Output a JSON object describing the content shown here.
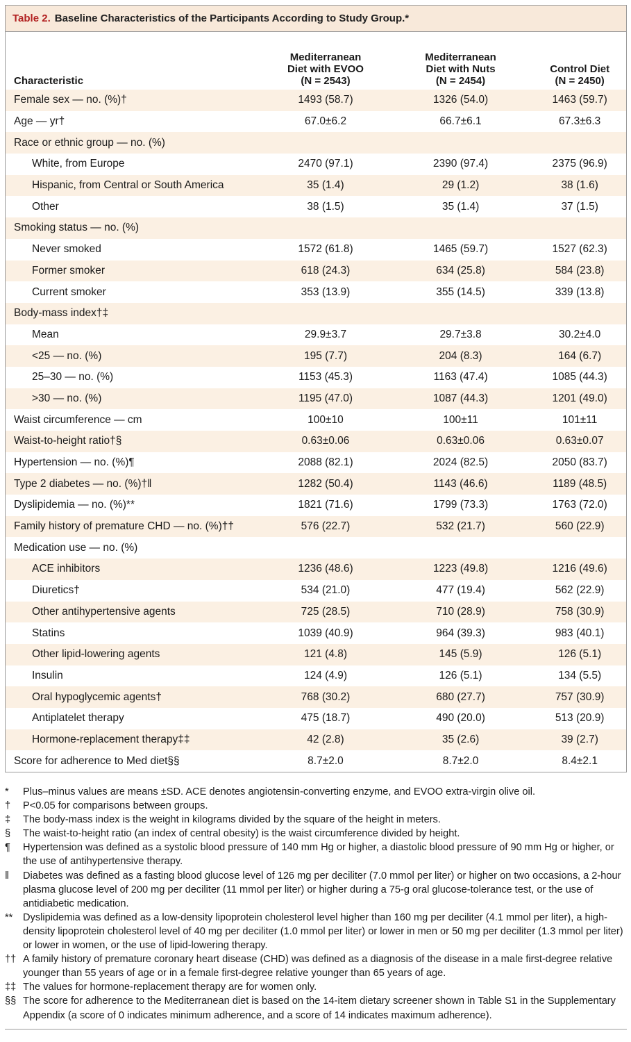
{
  "caption": {
    "number": "Table 2.",
    "title": "Baseline Characteristics of the Participants According to Study Group.*"
  },
  "columns": {
    "characteristic": "Characteristic",
    "evoo": [
      "Mediterranean",
      "Diet with EVOO",
      "(N = 2543)"
    ],
    "nuts": [
      "Mediterranean",
      "Diet with Nuts",
      "(N = 2454)"
    ],
    "control": [
      "Control Diet",
      "(N = 2450)"
    ]
  },
  "rows": [
    {
      "label": "Female sex — no. (%)†",
      "indent": false,
      "shade": true,
      "v": [
        "1493 (58.7)",
        "1326 (54.0)",
        "1463 (59.7)"
      ]
    },
    {
      "label": "Age — yr†",
      "indent": false,
      "shade": false,
      "v": [
        "67.0±6.2",
        "66.7±6.1",
        "67.3±6.3"
      ]
    },
    {
      "label": "Race or ethnic group — no. (%)",
      "indent": false,
      "shade": true,
      "v": [
        "",
        "",
        ""
      ]
    },
    {
      "label": "White, from Europe",
      "indent": true,
      "shade": false,
      "v": [
        "2470 (97.1)",
        "2390 (97.4)",
        "2375 (96.9)"
      ]
    },
    {
      "label": "Hispanic, from Central or South America",
      "indent": true,
      "shade": true,
      "v": [
        "35 (1.4)",
        "29 (1.2)",
        "38 (1.6)"
      ]
    },
    {
      "label": "Other",
      "indent": true,
      "shade": false,
      "v": [
        "38 (1.5)",
        "35 (1.4)",
        "37 (1.5)"
      ]
    },
    {
      "label": "Smoking status — no. (%)",
      "indent": false,
      "shade": true,
      "v": [
        "",
        "",
        ""
      ]
    },
    {
      "label": "Never smoked",
      "indent": true,
      "shade": false,
      "v": [
        "1572 (61.8)",
        "1465 (59.7)",
        "1527 (62.3)"
      ]
    },
    {
      "label": "Former smoker",
      "indent": true,
      "shade": true,
      "v": [
        "618 (24.3)",
        "634 (25.8)",
        "584 (23.8)"
      ]
    },
    {
      "label": "Current smoker",
      "indent": true,
      "shade": false,
      "v": [
        "353 (13.9)",
        "355 (14.5)",
        "339 (13.8)"
      ]
    },
    {
      "label": "Body-mass index†‡",
      "indent": false,
      "shade": true,
      "v": [
        "",
        "",
        ""
      ]
    },
    {
      "label": "Mean",
      "indent": true,
      "shade": false,
      "v": [
        "29.9±3.7",
        "29.7±3.8",
        "30.2±4.0"
      ]
    },
    {
      "label": "<25 — no. (%)",
      "indent": true,
      "shade": true,
      "v": [
        "195 (7.7)",
        "204 (8.3)",
        "164 (6.7)"
      ]
    },
    {
      "label": "25–30 — no. (%)",
      "indent": true,
      "shade": false,
      "v": [
        "1153 (45.3)",
        "1163 (47.4)",
        "1085 (44.3)"
      ]
    },
    {
      "label": ">30 — no. (%)",
      "indent": true,
      "shade": true,
      "v": [
        "1195 (47.0)",
        "1087 (44.3)",
        "1201 (49.0)"
      ]
    },
    {
      "label": "Waist circumference — cm",
      "indent": false,
      "shade": false,
      "v": [
        "100±10",
        "100±11",
        "101±11"
      ]
    },
    {
      "label": "Waist-to-height ratio†§",
      "indent": false,
      "shade": true,
      "v": [
        "0.63±0.06",
        "0.63±0.06",
        "0.63±0.07"
      ]
    },
    {
      "label": "Hypertension — no. (%)¶",
      "indent": false,
      "shade": false,
      "v": [
        "2088 (82.1)",
        "2024 (82.5)",
        "2050 (83.7)"
      ]
    },
    {
      "label": "Type 2 diabetes — no. (%)†‖",
      "indent": false,
      "shade": true,
      "v": [
        "1282 (50.4)",
        "1143 (46.6)",
        "1189 (48.5)"
      ]
    },
    {
      "label": "Dyslipidemia — no. (%)**",
      "indent": false,
      "shade": false,
      "v": [
        "1821 (71.6)",
        "1799 (73.3)",
        "1763 (72.0)"
      ]
    },
    {
      "label": "Family history of premature CHD — no. (%)††",
      "indent": false,
      "shade": true,
      "v": [
        "576 (22.7)",
        "532 (21.7)",
        "560 (22.9)"
      ]
    },
    {
      "label": "Medication use — no. (%)",
      "indent": false,
      "shade": false,
      "v": [
        "",
        "",
        ""
      ]
    },
    {
      "label": "ACE inhibitors",
      "indent": true,
      "shade": true,
      "v": [
        "1236 (48.6)",
        "1223 (49.8)",
        "1216 (49.6)"
      ]
    },
    {
      "label": "Diuretics†",
      "indent": true,
      "shade": false,
      "v": [
        "534 (21.0)",
        "477 (19.4)",
        "562 (22.9)"
      ]
    },
    {
      "label": "Other antihypertensive agents",
      "indent": true,
      "shade": true,
      "v": [
        "725 (28.5)",
        "710 (28.9)",
        "758 (30.9)"
      ]
    },
    {
      "label": "Statins",
      "indent": true,
      "shade": false,
      "v": [
        "1039 (40.9)",
        "964 (39.3)",
        "983 (40.1)"
      ]
    },
    {
      "label": "Other lipid-lowering agents",
      "indent": true,
      "shade": true,
      "v": [
        "121 (4.8)",
        "145 (5.9)",
        "126 (5.1)"
      ]
    },
    {
      "label": "Insulin",
      "indent": true,
      "shade": false,
      "v": [
        "124 (4.9)",
        "126 (5.1)",
        "134 (5.5)"
      ]
    },
    {
      "label": "Oral hypoglycemic agents†",
      "indent": true,
      "shade": true,
      "v": [
        "768 (30.2)",
        "680 (27.7)",
        "757 (30.9)"
      ]
    },
    {
      "label": "Antiplatelet therapy",
      "indent": true,
      "shade": false,
      "v": [
        "475 (18.7)",
        "490 (20.0)",
        "513 (20.9)"
      ]
    },
    {
      "label": "Hormone-replacement therapy‡‡",
      "indent": true,
      "shade": true,
      "v": [
        "42 (2.8)",
        "35 (2.6)",
        "39 (2.7)"
      ]
    },
    {
      "label": "Score for adherence to Med diet§§",
      "indent": false,
      "shade": false,
      "v": [
        "8.7±2.0",
        "8.7±2.0",
        "8.4±2.1"
      ]
    }
  ],
  "footnotes": [
    {
      "sym": "*",
      "text": "Plus–minus values are means ±SD. ACE denotes angiotensin-converting enzyme, and EVOO extra-virgin olive oil."
    },
    {
      "sym": "†",
      "text": "P<0.05 for comparisons between groups."
    },
    {
      "sym": "‡",
      "text": "The body-mass index is the weight in kilograms divided by the square of the height in meters."
    },
    {
      "sym": "§",
      "text": "The waist-to-height ratio (an index of central obesity) is the waist circumference divided by height."
    },
    {
      "sym": "¶",
      "text": "Hypertension was defined as a systolic blood pressure of 140 mm Hg or higher, a diastolic blood pressure of 90 mm Hg or higher, or the use of antihypertensive therapy."
    },
    {
      "sym": "‖",
      "text": "Diabetes was defined as a fasting blood glucose level of 126 mg per deciliter (7.0 mmol per liter) or higher on two occasions, a 2-hour plasma glucose level of 200 mg per deciliter (11 mmol per liter) or higher during a 75-g oral glucose-tolerance test, or the use of antidiabetic medication."
    },
    {
      "sym": "**",
      "text": "Dyslipidemia was defined as a low-density lipoprotein cholesterol level higher than 160 mg per deciliter (4.1 mmol per liter), a high-density lipoprotein cholesterol level of 40 mg per deciliter (1.0 mmol per liter) or lower in men or 50 mg per deciliter (1.3 mmol per liter) or lower in women, or the use of lipid-lowering therapy."
    },
    {
      "sym": "††",
      "text": "A family history of premature coronary heart disease (CHD) was defined as a diagnosis of the disease in a male first-degree relative younger than 55 years of age or in a female first-degree relative younger than 65 years of age."
    },
    {
      "sym": "‡‡",
      "text": "The values for hormone-replacement therapy are for women only."
    },
    {
      "sym": "§§",
      "text": "The score for adherence to the Mediterranean diet is based on the 14-item dietary screener shown in Table S1 in the Supplementary Appendix (a score of 0 indicates minimum adherence, and a score of 14 indicates maximum adherence)."
    }
  ]
}
